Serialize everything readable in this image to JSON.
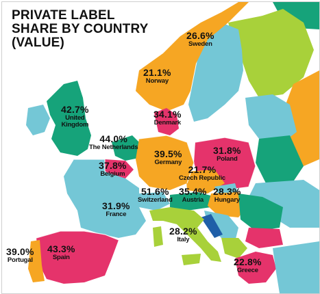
{
  "title": "PRIVATE LABEL\nSHARE BY COUNTRY\n(VALUE)",
  "colors": {
    "sea": "#ffffff",
    "teal": "#74c7d6",
    "green": "#16a37a",
    "lime": "#a8d13a",
    "orange": "#f6a623",
    "magenta": "#e5336b",
    "blue": "#1f5fa8"
  },
  "countries": [
    {
      "pct": "26.6%",
      "name": "Sweden"
    },
    {
      "pct": "21.1%",
      "name": "Norway"
    },
    {
      "pct": "42.7%",
      "name": "United\nKingdom"
    },
    {
      "pct": "34.1%",
      "name": "Denmark"
    },
    {
      "pct": "44.0%",
      "name": "The Netherlands"
    },
    {
      "pct": "31.8%",
      "name": "Poland"
    },
    {
      "pct": "37.8%",
      "name": "Belgium"
    },
    {
      "pct": "39.5%",
      "name": "Germany"
    },
    {
      "pct": "21.7%",
      "name": "Czech Republic"
    },
    {
      "pct": "51.6%",
      "name": "Switzerland"
    },
    {
      "pct": "35.4%",
      "name": "Austria"
    },
    {
      "pct": "28.3%",
      "name": "Hungary"
    },
    {
      "pct": "31.9%",
      "name": "France"
    },
    {
      "pct": "28.2%",
      "name": "Italy"
    },
    {
      "pct": "39.0%",
      "name": "Portugal"
    },
    {
      "pct": "43.3%",
      "name": "Spain"
    },
    {
      "pct": "22.8%",
      "name": "Greece"
    }
  ]
}
